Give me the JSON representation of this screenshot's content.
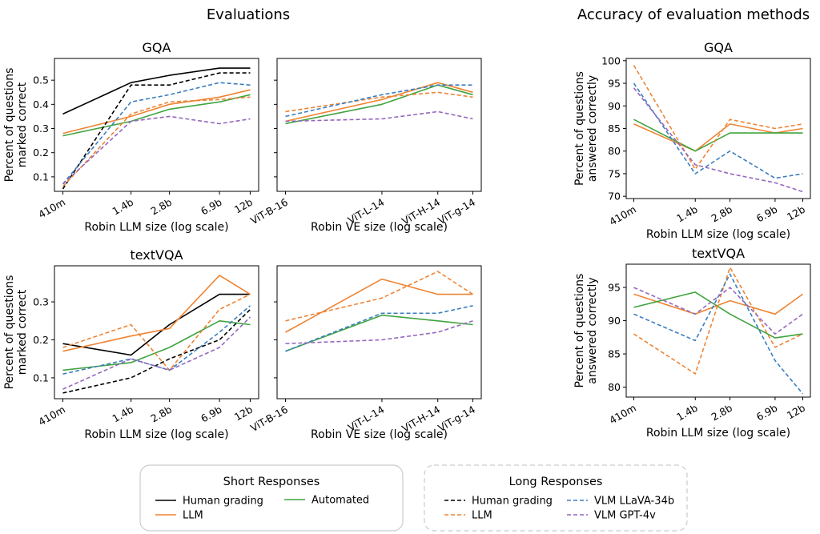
{
  "figure": {
    "left_title": "Evaluations",
    "right_title": "Accuracy of evaluation methods"
  },
  "styles": {
    "human": {
      "color": "#000000"
    },
    "llm": {
      "color": "#ee8433"
    },
    "automated": {
      "color": "#3fa43f"
    },
    "vlm_llava": {
      "color": "#3b7ebf"
    },
    "vlm_gpt4v": {
      "color": "#9467bd"
    }
  },
  "legend": {
    "short": {
      "title": "Short Responses",
      "items": [
        {
          "label": "Human grading",
          "style": "human",
          "dashed": false
        },
        {
          "label": "LLM",
          "style": "llm",
          "dashed": false
        },
        {
          "label": "Automated",
          "style": "automated",
          "dashed": false
        }
      ]
    },
    "long": {
      "title": "Long Responses",
      "items": [
        {
          "label": "Human grading",
          "style": "human",
          "dashed": true
        },
        {
          "label": "LLM",
          "style": "llm",
          "dashed": true
        },
        {
          "label": "VLM LLaVA-34b",
          "style": "vlm_llava",
          "dashed": true
        },
        {
          "label": "VLM GPT-4v",
          "style": "vlm_gpt4v",
          "dashed": true
        }
      ]
    }
  },
  "chart_data": [
    {
      "id": "gqa_llm",
      "type": "line",
      "title": "GQA",
      "xlabel": "Robin LLM size (log scale)",
      "ylabel": [
        "Percent of questions",
        "marked correct"
      ],
      "xscale": "log",
      "x": [
        0.41,
        1.4,
        2.8,
        6.9,
        12
      ],
      "xticklabels": [
        "410m",
        "1.4b",
        "2.8b",
        "6.9b",
        "12b"
      ],
      "ylim": [
        0.04,
        0.59
      ],
      "yticks": [
        0.1,
        0.2,
        0.3,
        0.4,
        0.5
      ],
      "yticklabels": [
        "0.1",
        "0.2",
        "0.3",
        "0.4",
        "0.5"
      ],
      "series": [
        {
          "style": "human",
          "dashed": false,
          "values": [
            0.36,
            0.49,
            0.52,
            0.55,
            0.55
          ]
        },
        {
          "style": "llm",
          "dashed": false,
          "values": [
            0.28,
            0.35,
            0.4,
            0.43,
            0.46
          ]
        },
        {
          "style": "automated",
          "dashed": false,
          "values": [
            0.27,
            0.33,
            0.38,
            0.41,
            0.44
          ]
        },
        {
          "style": "human",
          "dashed": true,
          "values": [
            0.05,
            0.48,
            0.48,
            0.53,
            0.53
          ]
        },
        {
          "style": "llm",
          "dashed": true,
          "values": [
            0.06,
            0.36,
            0.41,
            0.42,
            0.43
          ]
        },
        {
          "style": "vlm_llava",
          "dashed": true,
          "values": [
            0.07,
            0.41,
            0.44,
            0.49,
            0.48
          ]
        },
        {
          "style": "vlm_gpt4v",
          "dashed": true,
          "values": [
            0.07,
            0.33,
            0.35,
            0.32,
            0.34
          ]
        }
      ]
    },
    {
      "id": "gqa_ve",
      "type": "line",
      "title": "",
      "xlabel": "Robin VE size (log scale)",
      "xscale": "log",
      "x": [
        86,
        304,
        632,
        1000
      ],
      "xticklabels": [
        "ViT-B-16",
        "ViT-L-14",
        "ViT-H-14",
        "ViT-g-14"
      ],
      "ylim": [
        0.04,
        0.59
      ],
      "yticks": [
        0.1,
        0.2,
        0.3,
        0.4,
        0.5
      ],
      "series": [
        {
          "style": "llm",
          "dashed": false,
          "values": [
            0.33,
            0.42,
            0.49,
            0.45
          ]
        },
        {
          "style": "automated",
          "dashed": false,
          "values": [
            0.32,
            0.4,
            0.48,
            0.44
          ]
        },
        {
          "style": "llm",
          "dashed": true,
          "values": [
            0.37,
            0.43,
            0.45,
            0.43
          ]
        },
        {
          "style": "vlm_llava",
          "dashed": true,
          "values": [
            0.35,
            0.44,
            0.48,
            0.48
          ]
        },
        {
          "style": "vlm_gpt4v",
          "dashed": true,
          "values": [
            0.33,
            0.34,
            0.37,
            0.34
          ]
        }
      ]
    },
    {
      "id": "textvqa_llm",
      "type": "line",
      "title": "textVQA",
      "xlabel": "Robin LLM size (log scale)",
      "ylabel": [
        "Percent of questions",
        "marked correct"
      ],
      "xscale": "log",
      "x": [
        0.41,
        1.4,
        2.8,
        6.9,
        12
      ],
      "xticklabels": [
        "410m",
        "1.4b",
        "2.8b",
        "6.9b",
        "12b"
      ],
      "ylim": [
        0.045,
        0.395
      ],
      "yticks": [
        0.1,
        0.2,
        0.3
      ],
      "yticklabels": [
        "0.1",
        "0.2",
        "0.3"
      ],
      "series": [
        {
          "style": "human",
          "dashed": false,
          "values": [
            0.19,
            0.16,
            0.24,
            0.32,
            0.32
          ]
        },
        {
          "style": "llm",
          "dashed": false,
          "values": [
            0.17,
            0.21,
            0.23,
            0.37,
            0.32
          ]
        },
        {
          "style": "automated",
          "dashed": false,
          "values": [
            0.12,
            0.14,
            0.18,
            0.25,
            0.24
          ]
        },
        {
          "style": "human",
          "dashed": true,
          "values": [
            0.06,
            0.1,
            0.15,
            0.2,
            0.28
          ]
        },
        {
          "style": "llm",
          "dashed": true,
          "values": [
            0.18,
            0.24,
            0.12,
            0.28,
            0.32
          ]
        },
        {
          "style": "vlm_llava",
          "dashed": true,
          "values": [
            0.11,
            0.15,
            0.12,
            0.22,
            0.29
          ]
        },
        {
          "style": "vlm_gpt4v",
          "dashed": true,
          "values": [
            0.07,
            0.15,
            0.12,
            0.18,
            0.26
          ]
        }
      ]
    },
    {
      "id": "textvqa_ve",
      "type": "line",
      "title": "",
      "xlabel": "Robin VE size (log scale)",
      "xscale": "log",
      "x": [
        86,
        304,
        632,
        1000
      ],
      "xticklabels": [
        "ViT-B-16",
        "ViT-L-14",
        "ViT-H-14",
        "ViT-g-14"
      ],
      "ylim": [
        0.045,
        0.395
      ],
      "yticks": [
        0.1,
        0.2,
        0.3
      ],
      "series": [
        {
          "style": "llm",
          "dashed": false,
          "values": [
            0.22,
            0.36,
            0.32,
            0.32
          ]
        },
        {
          "style": "automated",
          "dashed": false,
          "values": [
            0.17,
            0.265,
            0.25,
            0.24
          ]
        },
        {
          "style": "llm",
          "dashed": true,
          "values": [
            0.25,
            0.31,
            0.38,
            0.32
          ]
        },
        {
          "style": "vlm_llava",
          "dashed": true,
          "values": [
            0.17,
            0.27,
            0.27,
            0.29
          ]
        },
        {
          "style": "vlm_gpt4v",
          "dashed": true,
          "values": [
            0.19,
            0.2,
            0.22,
            0.25
          ]
        }
      ]
    },
    {
      "id": "gqa_acc",
      "type": "line",
      "title": "GQA",
      "xlabel": "Robin LLM size (log scale)",
      "ylabel": [
        "Percent of questions",
        "answered correctly"
      ],
      "xscale": "log",
      "x": [
        0.41,
        1.4,
        2.8,
        6.9,
        12
      ],
      "xticklabels": [
        "410m",
        "1.4b",
        "2.8b",
        "6.9b",
        "12b"
      ],
      "ylim": [
        69.5,
        100.5
      ],
      "yticks": [
        70,
        75,
        80,
        85,
        90,
        95,
        100
      ],
      "yticklabels": [
        "70",
        "75",
        "80",
        "85",
        "90",
        "95",
        "100"
      ],
      "series": [
        {
          "style": "llm",
          "dashed": false,
          "values": [
            86,
            80,
            86,
            84,
            85
          ]
        },
        {
          "style": "automated",
          "dashed": false,
          "values": [
            87,
            80,
            84,
            84,
            84
          ]
        },
        {
          "style": "llm",
          "dashed": true,
          "values": [
            99,
            76,
            87,
            85,
            86
          ]
        },
        {
          "style": "vlm_llava",
          "dashed": true,
          "values": [
            95,
            75,
            80,
            74,
            75
          ]
        },
        {
          "style": "vlm_gpt4v",
          "dashed": true,
          "values": [
            94,
            77,
            75,
            73,
            71
          ]
        }
      ]
    },
    {
      "id": "textvqa_acc",
      "type": "line",
      "title": "textVQA",
      "xlabel": "Robin LLM size (log scale)",
      "ylabel": [
        "Percent of questions",
        "answered correctly"
      ],
      "xscale": "log",
      "x": [
        0.41,
        1.4,
        2.8,
        6.9,
        12
      ],
      "xticklabels": [
        "410m",
        "1.4b",
        "2.8b",
        "6.9b",
        "12b"
      ],
      "ylim": [
        78.5,
        98.5
      ],
      "yticks": [
        80,
        85,
        90,
        95
      ],
      "yticklabels": [
        "80",
        "85",
        "90",
        "95"
      ],
      "series": [
        {
          "style": "llm",
          "dashed": false,
          "values": [
            94,
            91,
            93,
            91,
            94
          ]
        },
        {
          "style": "automated",
          "dashed": false,
          "values": [
            92,
            94.3,
            91,
            87.4,
            88
          ]
        },
        {
          "style": "llm",
          "dashed": true,
          "values": [
            88,
            82,
            98,
            86,
            88
          ]
        },
        {
          "style": "vlm_llava",
          "dashed": true,
          "values": [
            91,
            87,
            97,
            84,
            79
          ]
        },
        {
          "style": "vlm_gpt4v",
          "dashed": true,
          "values": [
            95,
            91,
            95,
            88,
            91
          ]
        }
      ]
    }
  ]
}
